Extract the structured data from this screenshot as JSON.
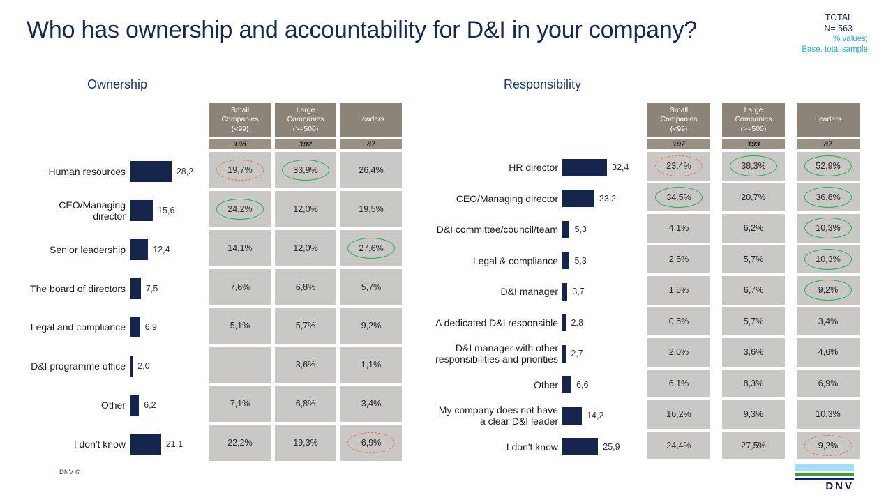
{
  "title": "Who has ownership and accountability for D&I in your company?",
  "header_right": {
    "total_label": "TOTAL",
    "n_label": "N= 563",
    "note_line1": "% values;",
    "note_line2": "Base, total sample"
  },
  "footer": {
    "copyright": "DNV ©",
    "logo_text": "DNV"
  },
  "colors": {
    "bar_navy": "#16254C",
    "title_navy": "#16294F",
    "cyan_note": "#29ABE2",
    "table_header_bg": "#8C8478",
    "n_row_bg": "#9A9186",
    "cell_bg": "#CAC8C4",
    "highlight_green": "#27AE60",
    "highlight_red": "#EE6B63",
    "logo_cyan": "#A6DFF2",
    "logo_green": "#3F9C35",
    "logo_navy": "#002874"
  },
  "chart_data": [
    {
      "type": "bar",
      "title": "Ownership",
      "xlabel": "",
      "ylabel": "",
      "xlim": [
        0,
        35
      ],
      "grid": false,
      "bar_orientation": "horizontal",
      "categories": [
        "Human resources",
        "CEO/Managing director",
        "Senior leadership",
        "The board of directors",
        "Legal and compliance",
        "D&I programme office",
        "Other",
        "I don't know"
      ],
      "values": [
        28.2,
        15.6,
        12.4,
        7.5,
        6.9,
        2.0,
        6.2,
        21.1
      ],
      "value_labels": [
        "28,2",
        "15,6",
        "12,4",
        "7,5",
        "6,9",
        "2,0",
        "6,2",
        "21,1"
      ],
      "columns": [
        "Small\nCompanies\n(<99)",
        "Large\nCompanies\n(>=500)",
        "Leaders"
      ],
      "column_n": [
        "198",
        "192",
        "87"
      ],
      "table": [
        {
          "cells": [
            "19,7%",
            "33,9%",
            "26,4%"
          ],
          "marks": [
            "red",
            "green",
            null
          ]
        },
        {
          "cells": [
            "24,2%",
            "12,0%",
            "19,5%"
          ],
          "marks": [
            "green",
            null,
            null
          ]
        },
        {
          "cells": [
            "14,1%",
            "12,0%",
            "27,6%"
          ],
          "marks": [
            null,
            null,
            "green"
          ]
        },
        {
          "cells": [
            "7,6%",
            "6,8%",
            "5,7%"
          ],
          "marks": [
            null,
            null,
            null
          ]
        },
        {
          "cells": [
            "5,1%",
            "5,7%",
            "9,2%"
          ],
          "marks": [
            null,
            null,
            null
          ]
        },
        {
          "cells": [
            "-",
            "3,6%",
            "1,1%"
          ],
          "marks": [
            null,
            null,
            null
          ]
        },
        {
          "cells": [
            "7,1%",
            "6,8%",
            "3,4%"
          ],
          "marks": [
            null,
            null,
            null
          ]
        },
        {
          "cells": [
            "22,2%",
            "19,3%",
            "6,9%"
          ],
          "marks": [
            null,
            null,
            "red"
          ]
        }
      ]
    },
    {
      "type": "bar",
      "title": "Responsibility",
      "xlabel": "",
      "ylabel": "",
      "xlim": [
        0,
        35
      ],
      "grid": false,
      "bar_orientation": "horizontal",
      "categories": [
        "HR director",
        "CEO/Managing director",
        "D&I committee/council/team",
        "Legal & compliance",
        "D&I manager",
        "A dedicated D&I responsible",
        "D&I manager with other\nresponsibilities and priorities",
        "Other",
        "My company does not have\na clear D&I leader",
        "I don't know"
      ],
      "values": [
        32.4,
        23.2,
        5.3,
        5.3,
        3.7,
        2.8,
        2.7,
        6.6,
        14.2,
        25.9
      ],
      "value_labels": [
        "32,4",
        "23,2",
        "5,3",
        "5,3",
        "3,7",
        "2,8",
        "2,7",
        "6,6",
        "14,2",
        "25,9"
      ],
      "columns": [
        "Small\nCompanies\n(<99)",
        "Large\nCompanies\n(>=500)",
        "Leaders"
      ],
      "column_n": [
        "197",
        "193",
        "87"
      ],
      "table": [
        {
          "cells": [
            "23,4%",
            "38,3%",
            "52,9%"
          ],
          "marks": [
            "red",
            "green",
            "green"
          ]
        },
        {
          "cells": [
            "34,5%",
            "20,7%",
            "36,8%"
          ],
          "marks": [
            "green",
            null,
            "green"
          ]
        },
        {
          "cells": [
            "4,1%",
            "6,2%",
            "10,3%"
          ],
          "marks": [
            null,
            null,
            "green"
          ]
        },
        {
          "cells": [
            "2,5%",
            "5,7%",
            "10,3%"
          ],
          "marks": [
            null,
            null,
            "green"
          ]
        },
        {
          "cells": [
            "1,5%",
            "6,7%",
            "9,2%"
          ],
          "marks": [
            null,
            null,
            "green"
          ]
        },
        {
          "cells": [
            "0,5%",
            "5,7%",
            "3,4%"
          ],
          "marks": [
            null,
            null,
            null
          ]
        },
        {
          "cells": [
            "2,0%",
            "3,6%",
            "4,6%"
          ],
          "marks": [
            null,
            null,
            null
          ]
        },
        {
          "cells": [
            "6,1%",
            "8,3%",
            "6,9%"
          ],
          "marks": [
            null,
            null,
            null
          ]
        },
        {
          "cells": [
            "16,2%",
            "9,3%",
            "10,3%"
          ],
          "marks": [
            null,
            null,
            null
          ]
        },
        {
          "cells": [
            "24,4%",
            "27,5%",
            "9,2%"
          ],
          "marks": [
            null,
            null,
            "red"
          ]
        }
      ]
    }
  ]
}
